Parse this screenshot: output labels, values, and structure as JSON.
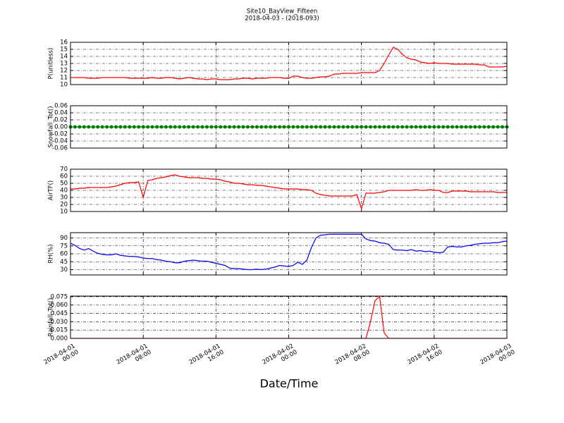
{
  "title": "Site10_BayView_Fifteen",
  "subtitle": "2018-04-03 - (2018-093)",
  "x_axis": {
    "label": "Date/Time",
    "xlim": [
      "2018-04-01 00:00",
      "2018-04-03 00:00"
    ],
    "xticks": [
      {
        "value": "2018-04-01 00:00",
        "label": "2018-04-01\n00:00"
      },
      {
        "value": "2018-04-01 08:00",
        "label": "2018-04-01\n08:00"
      },
      {
        "value": "2018-04-01 16:00",
        "label": "2018-04-01\n16:00"
      },
      {
        "value": "2018-04-02 00:00",
        "label": "2018-04-02\n00:00"
      },
      {
        "value": "2018-04-02 08:00",
        "label": "2018-04-02\n08:00"
      },
      {
        "value": "2018-04-02 16:00",
        "label": "2018-04-02\n16:00"
      },
      {
        "value": "2018-04-03 00:00",
        "label": "2018-04-03\n00:00"
      }
    ],
    "x": [
      "2018-04-01 00:00",
      "2018-04-01 00:30",
      "2018-04-01 01:00",
      "2018-04-01 01:30",
      "2018-04-01 02:00",
      "2018-04-01 02:30",
      "2018-04-01 03:00",
      "2018-04-01 03:30",
      "2018-04-01 04:00",
      "2018-04-01 04:30",
      "2018-04-01 05:00",
      "2018-04-01 05:30",
      "2018-04-01 06:00",
      "2018-04-01 06:30",
      "2018-04-01 07:00",
      "2018-04-01 07:30",
      "2018-04-01 08:00",
      "2018-04-01 08:30",
      "2018-04-01 09:00",
      "2018-04-01 09:30",
      "2018-04-01 10:00",
      "2018-04-01 10:30",
      "2018-04-01 11:00",
      "2018-04-01 11:30",
      "2018-04-01 12:00",
      "2018-04-01 12:30",
      "2018-04-01 13:00",
      "2018-04-01 13:30",
      "2018-04-01 14:00",
      "2018-04-01 14:30",
      "2018-04-01 15:00",
      "2018-04-01 15:30",
      "2018-04-01 16:00",
      "2018-04-01 16:30",
      "2018-04-01 17:00",
      "2018-04-01 17:30",
      "2018-04-01 18:00",
      "2018-04-01 18:30",
      "2018-04-01 19:00",
      "2018-04-01 19:30",
      "2018-04-01 20:00",
      "2018-04-01 20:30",
      "2018-04-01 21:00",
      "2018-04-01 21:30",
      "2018-04-01 22:00",
      "2018-04-01 22:30",
      "2018-04-01 23:00",
      "2018-04-01 23:30",
      "2018-04-02 00:00",
      "2018-04-02 00:30",
      "2018-04-02 01:00",
      "2018-04-02 01:30",
      "2018-04-02 02:00",
      "2018-04-02 02:30",
      "2018-04-02 03:00",
      "2018-04-02 03:30",
      "2018-04-02 04:00",
      "2018-04-02 04:30",
      "2018-04-02 05:00",
      "2018-04-02 05:30",
      "2018-04-02 06:00",
      "2018-04-02 06:30",
      "2018-04-02 07:00",
      "2018-04-02 07:30",
      "2018-04-02 08:00",
      "2018-04-02 08:30",
      "2018-04-02 09:00",
      "2018-04-02 09:30",
      "2018-04-02 10:00",
      "2018-04-02 10:30",
      "2018-04-02 11:00",
      "2018-04-02 11:30",
      "2018-04-02 12:00",
      "2018-04-02 12:30",
      "2018-04-02 13:00",
      "2018-04-02 13:30",
      "2018-04-02 14:00",
      "2018-04-02 14:30",
      "2018-04-02 15:00",
      "2018-04-02 15:30",
      "2018-04-02 16:00",
      "2018-04-02 16:30",
      "2018-04-02 17:00",
      "2018-04-02 17:30",
      "2018-04-02 18:00",
      "2018-04-02 18:30",
      "2018-04-02 19:00",
      "2018-04-02 19:30",
      "2018-04-02 20:00",
      "2018-04-02 20:30",
      "2018-04-02 21:00",
      "2018-04-02 21:30",
      "2018-04-02 22:00",
      "2018-04-02 22:30",
      "2018-04-02 23:00",
      "2018-04-02 23:30",
      "2018-04-03 00:00"
    ]
  },
  "chart_data": [
    {
      "type": "line",
      "ylabel": "P(unitless)",
      "ylim": [
        10,
        16
      ],
      "yticks": [
        10,
        11,
        12,
        13,
        14,
        15,
        16
      ],
      "grid": true,
      "series": [
        {
          "color": "#ff0000",
          "values": [
            11.0,
            11.0,
            11.0,
            11.0,
            10.9,
            10.9,
            10.9,
            11.0,
            11.0,
            11.0,
            11.0,
            11.0,
            11.0,
            10.9,
            10.9,
            10.9,
            10.9,
            10.9,
            11.0,
            10.9,
            10.9,
            11.0,
            11.0,
            10.9,
            10.8,
            10.9,
            11.0,
            10.9,
            10.8,
            10.8,
            10.7,
            10.8,
            10.8,
            10.7,
            10.7,
            10.7,
            10.8,
            10.8,
            10.9,
            10.9,
            10.8,
            10.9,
            10.9,
            10.9,
            11.0,
            11.0,
            11.0,
            10.9,
            10.9,
            11.2,
            11.2,
            11.0,
            10.9,
            10.9,
            11.0,
            11.1,
            11.1,
            11.2,
            11.5,
            11.5,
            11.6,
            11.6,
            11.6,
            11.6,
            11.7,
            11.7,
            11.7,
            11.7,
            12.0,
            13.0,
            14.2,
            15.3,
            15.0,
            14.3,
            13.8,
            13.6,
            13.5,
            13.2,
            13.1,
            13.0,
            13.1,
            13.0,
            13.0,
            13.0,
            12.9,
            12.9,
            12.9,
            12.9,
            12.9,
            12.9,
            12.8,
            12.8,
            12.5,
            12.5,
            12.5,
            12.5,
            12.6
          ]
        }
      ]
    },
    {
      "type": "line",
      "ylabel": "Snowfall_Tot()",
      "ylim": [
        -0.06,
        0.06
      ],
      "yticks": [
        -0.06,
        -0.04,
        -0.02,
        {
          "value": 0,
          "label": "0.00"
        },
        0.02,
        0.04,
        0.06
      ],
      "grid": true,
      "series": [
        {
          "color": "#008000",
          "marker": true,
          "values": [
            0,
            0,
            0,
            0,
            0,
            0,
            0,
            0,
            0,
            0,
            0,
            0,
            0,
            0,
            0,
            0,
            0,
            0,
            0,
            0,
            0,
            0,
            0,
            0,
            0,
            0,
            0,
            0,
            0,
            0,
            0,
            0,
            0,
            0,
            0,
            0,
            0,
            0,
            0,
            0,
            0,
            0,
            0,
            0,
            0,
            0,
            0,
            0,
            0,
            0,
            0,
            0,
            0,
            0,
            0,
            0,
            0,
            0,
            0,
            0,
            0,
            0,
            0,
            0,
            0,
            0,
            0,
            0,
            0,
            0,
            0,
            0,
            0,
            0,
            0,
            0,
            0,
            0,
            0,
            0,
            0,
            0,
            0,
            0,
            0,
            0,
            0,
            0,
            0,
            0,
            0,
            0,
            0,
            0,
            0,
            0,
            0
          ]
        }
      ]
    },
    {
      "type": "line",
      "ylabel": "AirTF()",
      "ylim": [
        10,
        70
      ],
      "yticks": [
        10,
        20,
        30,
        40,
        50,
        60,
        70
      ],
      "grid": true,
      "series": [
        {
          "color": "#ff0000",
          "values": [
            42,
            42,
            43,
            43,
            44,
            44,
            44,
            44,
            44,
            45,
            46,
            48,
            50,
            51,
            51,
            52,
            30,
            54,
            55,
            57,
            58,
            59,
            61,
            62,
            60,
            59,
            58,
            58,
            58,
            57,
            57,
            56,
            56,
            55,
            53,
            52,
            50,
            50,
            49,
            48,
            48,
            47,
            47,
            46,
            45,
            44,
            43,
            42,
            42,
            42,
            42,
            41,
            41,
            40,
            36,
            34,
            33,
            32,
            32,
            32,
            32,
            32,
            32,
            34,
            14,
            36,
            36,
            36,
            37,
            38,
            40,
            40,
            40,
            40,
            40,
            40,
            41,
            40,
            40,
            41,
            40,
            40,
            37,
            37,
            39,
            39,
            39,
            39,
            38,
            38,
            38,
            38,
            38,
            38,
            37,
            37,
            37
          ]
        }
      ]
    },
    {
      "type": "line",
      "ylabel": "RH(%)",
      "ylim": [
        20,
        100
      ],
      "yticks": [
        30,
        45,
        60,
        75,
        90
      ],
      "grid": true,
      "series": [
        {
          "color": "#0000ff",
          "values": [
            80,
            76,
            70,
            67,
            70,
            65,
            61,
            59,
            58,
            58,
            60,
            57,
            56,
            55,
            55,
            54,
            52,
            51,
            51,
            49,
            48,
            46,
            45,
            43,
            43,
            46,
            47,
            48,
            47,
            46,
            46,
            44,
            42,
            40,
            38,
            33,
            32,
            32,
            31,
            30,
            30,
            31,
            30,
            31,
            33,
            35,
            38,
            37,
            36,
            38,
            44,
            40,
            48,
            72,
            90,
            95,
            96,
            97,
            97,
            97,
            97,
            97,
            97,
            97,
            97,
            88,
            85,
            84,
            81,
            80,
            78,
            68,
            67,
            67,
            66,
            68,
            65,
            66,
            64,
            65,
            63,
            62,
            63,
            73,
            74,
            73,
            73,
            75,
            76,
            78,
            79,
            80,
            80,
            81,
            81,
            83,
            84
          ]
        }
      ]
    },
    {
      "type": "line",
      "ylabel": "Rainfall_Tot()",
      "ylim": [
        0,
        0.076
      ],
      "yticks": [
        {
          "value": 0,
          "label": "0.000"
        },
        0.015,
        {
          "value": 0.03,
          "label": "0.030"
        },
        0.045,
        {
          "value": 0.06,
          "label": "0.060"
        },
        0.075
      ],
      "grid": true,
      "series": [
        {
          "color": "#ff0000",
          "values": [
            0,
            0,
            0,
            0,
            0,
            0,
            0,
            0,
            0,
            0,
            0,
            0,
            0,
            0,
            0,
            0,
            0,
            0,
            0,
            0,
            0,
            0,
            0,
            0,
            0,
            0,
            0,
            0,
            0,
            0,
            0,
            0,
            0,
            0,
            0,
            0,
            0,
            0,
            0,
            0,
            0,
            0,
            0,
            0,
            0,
            0,
            0,
            0,
            0,
            0,
            0,
            0,
            0,
            0,
            0,
            0,
            0,
            0,
            0,
            0,
            0,
            0,
            0,
            0,
            0,
            0,
            0.03,
            0.068,
            0.075,
            0.01,
            0,
            0,
            0,
            0,
            0,
            0,
            0,
            0,
            0,
            0,
            0,
            0,
            0,
            0,
            0,
            0,
            0,
            0,
            0,
            0,
            0,
            0,
            0,
            0,
            0,
            0,
            0
          ]
        }
      ]
    }
  ]
}
